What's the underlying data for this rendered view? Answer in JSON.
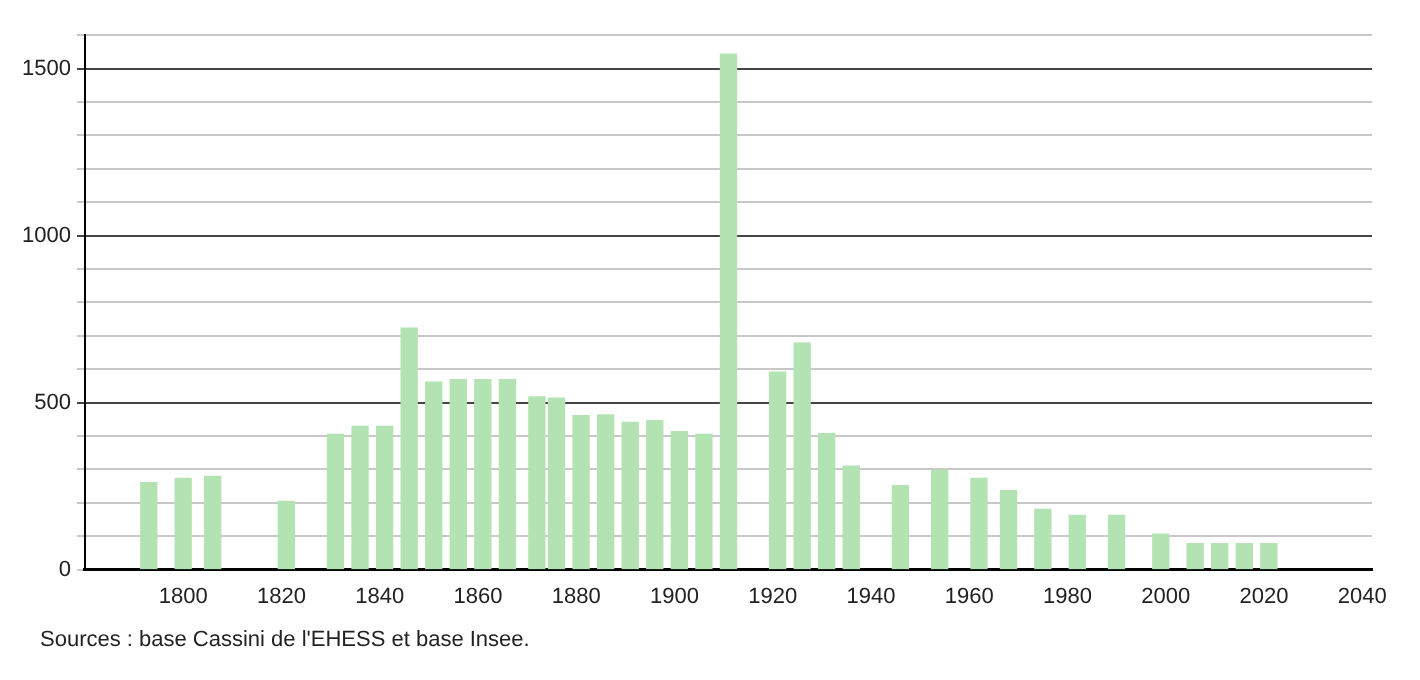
{
  "chart_data": {
    "type": "bar",
    "x": [
      1793,
      1800,
      1806,
      1821,
      1831,
      1836,
      1841,
      1846,
      1851,
      1856,
      1861,
      1866,
      1872,
      1876,
      1881,
      1886,
      1891,
      1896,
      1901,
      1906,
      1911,
      1921,
      1926,
      1931,
      1936,
      1946,
      1954,
      1962,
      1968,
      1975,
      1982,
      1990,
      1999,
      2006,
      2011,
      2016,
      2021
    ],
    "values": [
      260,
      273,
      279,
      204,
      405,
      429,
      429,
      723,
      561,
      569,
      569,
      569,
      517,
      513,
      461,
      463,
      441,
      446,
      413,
      405,
      1543,
      591,
      678,
      407,
      310,
      251,
      297,
      273,
      236,
      180,
      162,
      162,
      106,
      78,
      78,
      78,
      78
    ],
    "color": "#b3e3b3",
    "xlim": [
      1780,
      2042
    ],
    "xticks": [
      1800,
      1820,
      1840,
      1860,
      1880,
      1900,
      1920,
      1940,
      1960,
      1980,
      2000,
      2020,
      2040
    ],
    "ylim": [
      0,
      1600
    ],
    "yticks": [
      0,
      {
        "value": 100,
        "label": null
      },
      {
        "value": 200,
        "label": null
      },
      {
        "value": 300,
        "label": null
      },
      {
        "value": 400,
        "label": null
      },
      500,
      {
        "value": 600,
        "label": null
      },
      {
        "value": 700,
        "label": null
      },
      {
        "value": 800,
        "label": null
      },
      {
        "value": 900,
        "label": null
      },
      1000,
      {
        "value": 1100,
        "label": null
      },
      {
        "value": 1200,
        "label": null
      },
      {
        "value": 1300,
        "label": null
      },
      {
        "value": 1400,
        "label": null
      },
      1500,
      {
        "value": 1600,
        "label": null
      }
    ],
    "grid": "y",
    "legend": false,
    "annotations": [
      "Sources : base Cassini de l'EHESS et base Insee."
    ]
  }
}
